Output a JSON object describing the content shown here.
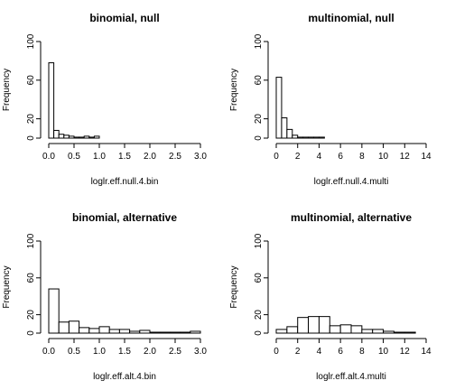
{
  "chart_data": [
    {
      "type": "bar",
      "title": "binomial, null",
      "xlabel": "loglr.eff.null.4.bin",
      "ylabel": "Frequency",
      "bin_edges": [
        0,
        0.1,
        0.2,
        0.3,
        0.4,
        0.5,
        0.6,
        0.7,
        0.8,
        0.9,
        1.0
      ],
      "values": [
        78,
        8,
        4,
        3,
        2,
        1,
        1,
        2,
        1,
        2
      ],
      "xlim": [
        0,
        3.0
      ],
      "ylim": [
        0,
        100
      ],
      "x_ticks": [
        "0.0",
        "0.5",
        "1.0",
        "1.5",
        "2.0",
        "2.5",
        "3.0"
      ],
      "y_ticks": [
        "0",
        "20",
        "60",
        "100"
      ]
    },
    {
      "type": "bar",
      "title": "multinomial, null",
      "xlabel": "loglr.eff.null.4.multi",
      "ylabel": "Frequency",
      "bin_edges": [
        0,
        0.5,
        1.0,
        1.5,
        2.0,
        2.5,
        3.0,
        3.5,
        4.0,
        4.5
      ],
      "values": [
        63,
        21,
        9,
        3,
        1,
        1,
        1,
        1,
        1
      ],
      "xlim": [
        0,
        14
      ],
      "ylim": [
        0,
        100
      ],
      "x_ticks": [
        "0",
        "2",
        "4",
        "6",
        "8",
        "10",
        "12",
        "14"
      ],
      "y_ticks": [
        "0",
        "20",
        "60",
        "100"
      ]
    },
    {
      "type": "bar",
      "title": "binomial, alternative",
      "xlabel": "loglr.eff.alt.4.bin",
      "ylabel": "Frequency",
      "bin_edges": [
        0,
        0.2,
        0.4,
        0.6,
        0.8,
        1.0,
        1.2,
        1.4,
        1.6,
        1.8,
        2.0,
        2.2,
        2.4,
        2.6,
        2.8,
        3.0
      ],
      "values": [
        48,
        12,
        13,
        6,
        5,
        7,
        4,
        4,
        2,
        3,
        1,
        1,
        1,
        1,
        2
      ],
      "xlim": [
        0,
        3.0
      ],
      "ylim": [
        0,
        100
      ],
      "x_ticks": [
        "0.0",
        "0.5",
        "1.0",
        "1.5",
        "2.0",
        "2.5",
        "3.0"
      ],
      "y_ticks": [
        "0",
        "20",
        "60",
        "100"
      ]
    },
    {
      "type": "bar",
      "title": "multinomial, alternative",
      "xlabel": "loglr.eff.alt.4.multi",
      "ylabel": "Frequency",
      "bin_edges": [
        0,
        1,
        2,
        3,
        4,
        5,
        6,
        7,
        8,
        9,
        10,
        11,
        12,
        13
      ],
      "values": [
        4,
        7,
        17,
        18,
        18,
        8,
        9,
        8,
        4,
        4,
        2,
        1,
        1
      ],
      "xlim": [
        0,
        14
      ],
      "ylim": [
        0,
        100
      ],
      "x_ticks": [
        "0",
        "2",
        "4",
        "6",
        "8",
        "10",
        "12",
        "14"
      ],
      "y_ticks": [
        "0",
        "20",
        "60",
        "100"
      ]
    }
  ]
}
